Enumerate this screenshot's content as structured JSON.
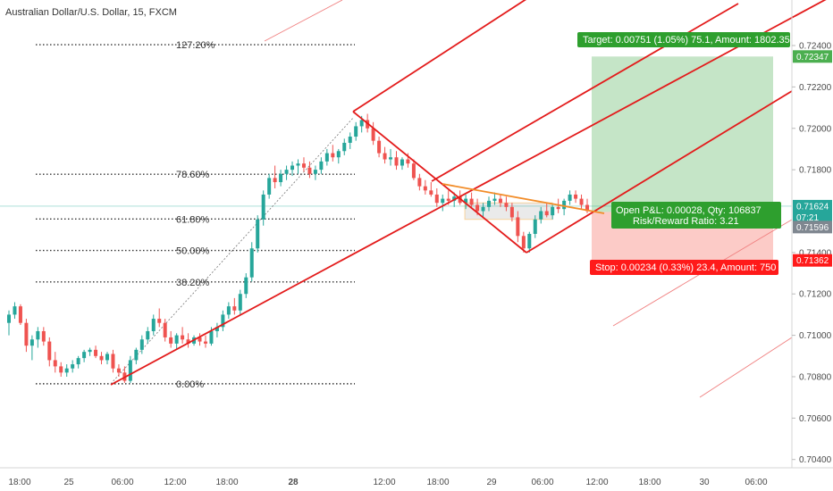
{
  "chart_data": {
    "type": "candlestick",
    "title": "Australian Dollar/U.S. Dollar, 15, FXCM",
    "x_ticks": [
      "18:00",
      "25",
      "06:00",
      "12:00",
      "18:00",
      "28",
      "12:00",
      "18:00",
      "29",
      "06:00",
      "12:00",
      "18:00",
      "30",
      "06:00"
    ],
    "y_ticks": [
      "0.72400",
      "0.72200",
      "0.72000",
      "0.71800",
      "0.71400",
      "0.71200",
      "0.71000",
      "0.70800",
      "0.70600",
      "0.70400"
    ],
    "ylim": [
      0.7036,
      0.7262
    ],
    "fib_levels": [
      {
        "label": "127.20%",
        "price": 0.72404
      },
      {
        "label": "78.60%",
        "price": 0.71778
      },
      {
        "label": "61.80%",
        "price": 0.71562
      },
      {
        "label": "50.00%",
        "price": 0.7141
      },
      {
        "label": "38.20%",
        "price": 0.71258
      },
      {
        "label": "0.00%",
        "price": 0.70766
      }
    ],
    "price_labels": [
      {
        "text": "0.72347",
        "price": 0.72347,
        "color": "#4caf50"
      },
      {
        "text": "0.71624",
        "price": 0.71624,
        "color": "#26a69a"
      },
      {
        "text": "07:21",
        "price": 0.7157,
        "color": "#26a69a"
      },
      {
        "text": "0.71596",
        "price": 0.71523,
        "color": "#7f8790"
      },
      {
        "text": "0.71362",
        "price": 0.71362,
        "color": "#ff1a1a"
      }
    ],
    "position": {
      "target": "Target: 0.00751 (1.05%) 75.1, Amount: 1802.35",
      "open_pl": "Open P&L: 0.00028, Qty: 106837",
      "risk_reward": "Risk/Reward Ratio: 3.21",
      "stop": "Stop: 0.00234 (0.33%) 23.4, Amount: 750",
      "entry": 0.71596,
      "target_price": 0.72347,
      "stop_price": 0.71362
    },
    "candles": [
      [
        0.7106,
        0.7112,
        0.71,
        0.711
      ],
      [
        0.711,
        0.7116,
        0.7108,
        0.7114
      ],
      [
        0.7114,
        0.7115,
        0.7105,
        0.7106
      ],
      [
        0.7106,
        0.7108,
        0.7092,
        0.7095
      ],
      [
        0.7095,
        0.71,
        0.7088,
        0.7098
      ],
      [
        0.7098,
        0.7104,
        0.7094,
        0.7102
      ],
      [
        0.7102,
        0.7104,
        0.7095,
        0.7097
      ],
      [
        0.7097,
        0.7099,
        0.7085,
        0.7088
      ],
      [
        0.7088,
        0.7092,
        0.7082,
        0.7085
      ],
      [
        0.7085,
        0.7087,
        0.708,
        0.7082
      ],
      [
        0.7082,
        0.7086,
        0.708,
        0.7084
      ],
      [
        0.7084,
        0.7088,
        0.7082,
        0.7086
      ],
      [
        0.7086,
        0.709,
        0.7084,
        0.7089
      ],
      [
        0.7089,
        0.7093,
        0.7087,
        0.7092
      ],
      [
        0.7092,
        0.7094,
        0.709,
        0.7093
      ],
      [
        0.7093,
        0.7095,
        0.7089,
        0.709
      ],
      [
        0.709,
        0.7092,
        0.7086,
        0.7088
      ],
      [
        0.7088,
        0.7092,
        0.7086,
        0.7091
      ],
      [
        0.7091,
        0.7093,
        0.7082,
        0.7084
      ],
      [
        0.7084,
        0.7086,
        0.708,
        0.7082
      ],
      [
        0.7082,
        0.7085,
        0.7077,
        0.7078
      ],
      [
        0.7078,
        0.709,
        0.7077,
        0.7088
      ],
      [
        0.7088,
        0.7094,
        0.7086,
        0.7093
      ],
      [
        0.7093,
        0.71,
        0.7091,
        0.7098
      ],
      [
        0.7098,
        0.7104,
        0.7096,
        0.7102
      ],
      [
        0.7102,
        0.711,
        0.71,
        0.7108
      ],
      [
        0.7108,
        0.7113,
        0.7104,
        0.7106
      ],
      [
        0.7106,
        0.7108,
        0.7097,
        0.7099
      ],
      [
        0.7099,
        0.7102,
        0.7094,
        0.7096
      ],
      [
        0.7096,
        0.7101,
        0.7093,
        0.71
      ],
      [
        0.71,
        0.7104,
        0.7096,
        0.7098
      ],
      [
        0.7098,
        0.7101,
        0.7094,
        0.7096
      ],
      [
        0.7096,
        0.71,
        0.7095,
        0.7099
      ],
      [
        0.7099,
        0.7101,
        0.7095,
        0.7097
      ],
      [
        0.7097,
        0.71,
        0.7094,
        0.7096
      ],
      [
        0.7096,
        0.7104,
        0.7095,
        0.7102
      ],
      [
        0.7102,
        0.7106,
        0.7099,
        0.7104
      ],
      [
        0.7104,
        0.7112,
        0.7102,
        0.711
      ],
      [
        0.711,
        0.7116,
        0.7108,
        0.7114
      ],
      [
        0.7114,
        0.7118,
        0.711,
        0.7112
      ],
      [
        0.7112,
        0.7122,
        0.711,
        0.712
      ],
      [
        0.712,
        0.713,
        0.7118,
        0.7128
      ],
      [
        0.7128,
        0.7145,
        0.7126,
        0.7142
      ],
      [
        0.7142,
        0.7158,
        0.714,
        0.7156
      ],
      [
        0.7156,
        0.717,
        0.7153,
        0.7168
      ],
      [
        0.7168,
        0.7178,
        0.7166,
        0.7176
      ],
      [
        0.7176,
        0.7182,
        0.7171,
        0.7174
      ],
      [
        0.7174,
        0.718,
        0.7172,
        0.7178
      ],
      [
        0.7178,
        0.7182,
        0.7175,
        0.718
      ],
      [
        0.718,
        0.7184,
        0.7177,
        0.7182
      ],
      [
        0.7182,
        0.7185,
        0.7178,
        0.7183
      ],
      [
        0.7183,
        0.7186,
        0.7179,
        0.7181
      ],
      [
        0.7181,
        0.7184,
        0.7176,
        0.7178
      ],
      [
        0.7178,
        0.7182,
        0.7175,
        0.718
      ],
      [
        0.718,
        0.7186,
        0.7178,
        0.7184
      ],
      [
        0.7184,
        0.719,
        0.7182,
        0.7188
      ],
      [
        0.7188,
        0.7192,
        0.7184,
        0.7186
      ],
      [
        0.7186,
        0.719,
        0.7183,
        0.7189
      ],
      [
        0.7189,
        0.7195,
        0.7187,
        0.7193
      ],
      [
        0.7193,
        0.7198,
        0.719,
        0.7196
      ],
      [
        0.7196,
        0.7203,
        0.7194,
        0.7201
      ],
      [
        0.7201,
        0.7206,
        0.7198,
        0.7204
      ],
      [
        0.7204,
        0.7207,
        0.7198,
        0.72
      ],
      [
        0.72,
        0.7203,
        0.7192,
        0.7194
      ],
      [
        0.7194,
        0.7196,
        0.7186,
        0.7188
      ],
      [
        0.7188,
        0.7191,
        0.7183,
        0.7185
      ],
      [
        0.7185,
        0.719,
        0.7182,
        0.7186
      ],
      [
        0.7186,
        0.7189,
        0.718,
        0.7182
      ],
      [
        0.7182,
        0.7186,
        0.718,
        0.7185
      ],
      [
        0.7185,
        0.7188,
        0.7181,
        0.7183
      ],
      [
        0.7183,
        0.7185,
        0.7175,
        0.7176
      ],
      [
        0.7176,
        0.7178,
        0.717,
        0.7172
      ],
      [
        0.7172,
        0.7175,
        0.7168,
        0.717
      ],
      [
        0.717,
        0.7174,
        0.7167,
        0.7168
      ],
      [
        0.7168,
        0.7171,
        0.7162,
        0.7164
      ],
      [
        0.7164,
        0.7168,
        0.716,
        0.7166
      ],
      [
        0.7166,
        0.717,
        0.7163,
        0.7165
      ],
      [
        0.7165,
        0.7169,
        0.7162,
        0.7167
      ],
      [
        0.7167,
        0.717,
        0.7163,
        0.7164
      ],
      [
        0.7164,
        0.7168,
        0.7161,
        0.7166
      ],
      [
        0.7166,
        0.7169,
        0.7162,
        0.7163
      ],
      [
        0.7163,
        0.7166,
        0.7158,
        0.716
      ],
      [
        0.716,
        0.7164,
        0.7157,
        0.7162
      ],
      [
        0.7162,
        0.7167,
        0.716,
        0.7165
      ],
      [
        0.7165,
        0.7169,
        0.7163,
        0.7166
      ],
      [
        0.7166,
        0.7168,
        0.7162,
        0.7164
      ],
      [
        0.7164,
        0.7167,
        0.716,
        0.7162
      ],
      [
        0.7162,
        0.7164,
        0.7155,
        0.7157
      ],
      [
        0.7157,
        0.716,
        0.7145,
        0.7148
      ],
      [
        0.7148,
        0.715,
        0.714,
        0.7142
      ],
      [
        0.7142,
        0.715,
        0.714,
        0.7149
      ],
      [
        0.7149,
        0.7158,
        0.7147,
        0.7156
      ],
      [
        0.7156,
        0.7162,
        0.7154,
        0.716
      ],
      [
        0.716,
        0.7164,
        0.7157,
        0.7158
      ],
      [
        0.7158,
        0.7163,
        0.7156,
        0.7162
      ],
      [
        0.7162,
        0.7166,
        0.7159,
        0.7161
      ],
      [
        0.7161,
        0.7166,
        0.7158,
        0.7165
      ],
      [
        0.7165,
        0.717,
        0.7163,
        0.7168
      ],
      [
        0.7168,
        0.717,
        0.7164,
        0.7166
      ],
      [
        0.7166,
        0.7168,
        0.7161,
        0.7163
      ],
      [
        0.7163,
        0.7166,
        0.7159,
        0.716
      ]
    ]
  }
}
